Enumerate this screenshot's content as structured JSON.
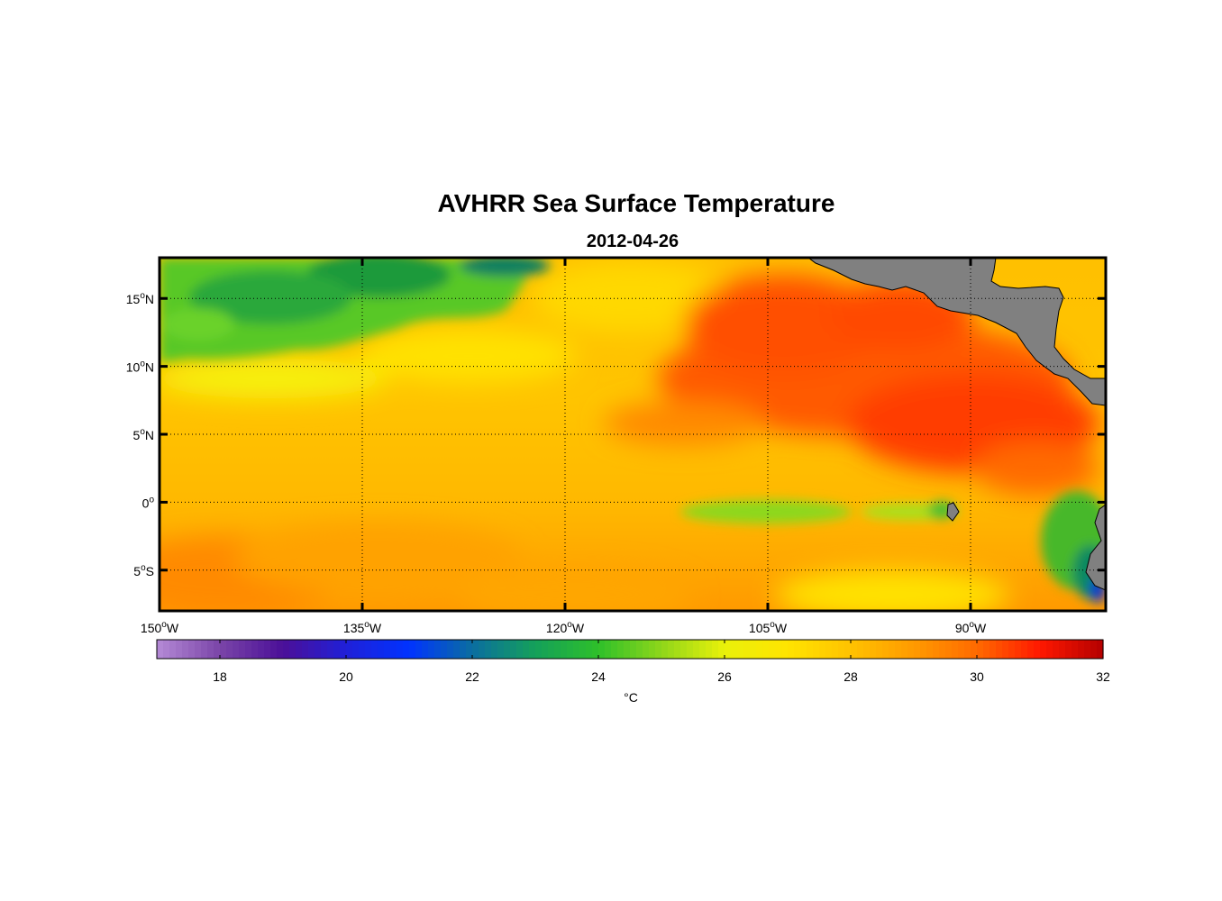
{
  "title": "AVHRR Sea Surface Temperature",
  "subtitle": "2012-04-26",
  "colors": {
    "land": "#808080",
    "frame": "#000000",
    "ramp": [
      "#b58ad6",
      "#7a45a8",
      "#4b0f98",
      "#2020d8",
      "#0033ff",
      "#0b6ea0",
      "#14a05a",
      "#2ec02a",
      "#8fd61a",
      "#eaf10a",
      "#ffe400",
      "#ffc200",
      "#ff9a00",
      "#ff6a00",
      "#ff1800",
      "#b40000"
    ]
  },
  "chart_data": {
    "type": "heatmap",
    "title": "AVHRR Sea Surface Temperature",
    "subtitle": "2012-04-26",
    "variable": "Sea Surface Temperature",
    "units": "°C",
    "lon_range": [
      -150,
      -80
    ],
    "lat_range": [
      -8,
      18
    ],
    "x_ticks": [
      {
        "value": -150,
        "deg": "150",
        "sup": "o",
        "hemi": "W"
      },
      {
        "value": -135,
        "deg": "135",
        "sup": "o",
        "hemi": "W"
      },
      {
        "value": -120,
        "deg": "120",
        "sup": "o",
        "hemi": "W"
      },
      {
        "value": -105,
        "deg": "105",
        "sup": "o",
        "hemi": "W"
      },
      {
        "value": -90,
        "deg": "90",
        "sup": "o",
        "hemi": "W"
      }
    ],
    "y_ticks": [
      {
        "value": 15,
        "deg": "15",
        "sup": "o",
        "hemi": "N"
      },
      {
        "value": 10,
        "deg": "10",
        "sup": "o",
        "hemi": "N"
      },
      {
        "value": 5,
        "deg": "5",
        "sup": "o",
        "hemi": "N"
      },
      {
        "value": 0,
        "deg": "0",
        "sup": "o",
        "hemi": ""
      },
      {
        "value": -5,
        "deg": "5",
        "sup": "o",
        "hemi": "S"
      }
    ],
    "grid": true,
    "colorbar": {
      "range": [
        17,
        32
      ],
      "ticks": [
        "18",
        "20",
        "22",
        "24",
        "26",
        "28",
        "30",
        "32"
      ],
      "label": "°C",
      "orientation": "horizontal"
    },
    "features": [
      {
        "name": "cool tongue north-west",
        "lon": [
          -150,
          -121
        ],
        "lat": [
          11,
          18
        ],
        "approx_sst": 24.5
      },
      {
        "name": "warm pool east",
        "lon": [
          -112,
          -80
        ],
        "lat": [
          4,
          14
        ],
        "approx_sst": 30
      },
      {
        "name": "equatorial cold tongue",
        "lon": [
          -112,
          -91
        ],
        "lat": [
          -1.5,
          0.5
        ],
        "approx_sst": 25.3
      },
      {
        "name": "coastal upwelling Peru",
        "lon": [
          -84,
          -80
        ],
        "lat": [
          -8,
          -1
        ],
        "approx_sst": 23
      },
      {
        "name": "south warm band",
        "lon": [
          -150,
          -128
        ],
        "lat": [
          -8,
          -2
        ],
        "approx_sst": 28.7
      }
    ]
  }
}
